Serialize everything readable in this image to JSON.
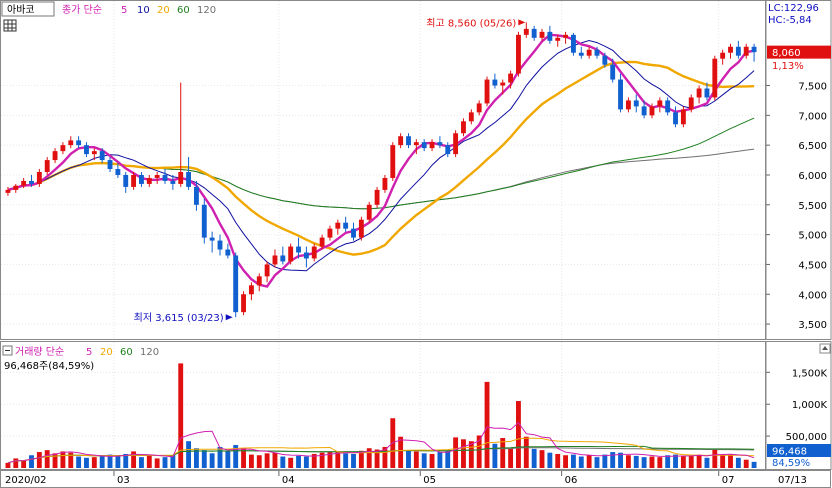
{
  "header": {
    "stock_name": "아바코",
    "price_legend": {
      "label": "종가 단순",
      "periods": [
        "5",
        "10",
        "20",
        "60",
        "120"
      ]
    },
    "volume_legend": {
      "label": "거래량 단순",
      "periods": [
        "5",
        "20",
        "60",
        "120"
      ]
    },
    "volume_readout": "96,468주(84,59%)",
    "lc": "LC:122,96",
    "hc": "HC:-5,84"
  },
  "colors": {
    "ma5": "#d020b0",
    "ma10": "#1010a0",
    "ma20": "#f0a800",
    "ma60": "#208020",
    "ma120": "#707070",
    "up": "#e01010",
    "down": "#1060d0",
    "price_tag": "#e01010",
    "volume_tag": "#1060d0"
  },
  "chart_data": [
    {
      "type": "candlestick",
      "y_ticks": [
        3500,
        4000,
        4500,
        5000,
        5500,
        6000,
        6500,
        7000,
        7500
      ],
      "y_tick_labels": [
        "3,500",
        "4,000",
        "4,500",
        "5,000",
        "5,500",
        "6,000",
        "6,500",
        "7,000",
        "7,500"
      ],
      "ylim": [
        3300,
        8800
      ],
      "x_labels": [
        "2020/02",
        "03",
        "04",
        "05",
        "06",
        "07",
        "07/13"
      ],
      "last_price": "8,060",
      "last_change": "1,13%",
      "high_annotation": "최고 8,560 (05/26)",
      "low_annotation": "최저 3,615 (03/23)",
      "high": 8560,
      "low": 3615,
      "candles": [
        [
          5700,
          5800,
          5650,
          5750
        ],
        [
          5750,
          5850,
          5700,
          5820
        ],
        [
          5820,
          5950,
          5780,
          5900
        ],
        [
          5900,
          6000,
          5800,
          5850
        ],
        [
          5850,
          6100,
          5800,
          6050
        ],
        [
          6050,
          6300,
          6000,
          6250
        ],
        [
          6250,
          6450,
          6200,
          6400
        ],
        [
          6400,
          6550,
          6350,
          6500
        ],
        [
          6500,
          6650,
          6450,
          6580
        ],
        [
          6580,
          6650,
          6450,
          6500
        ],
        [
          6500,
          6550,
          6300,
          6350
        ],
        [
          6350,
          6450,
          6250,
          6400
        ],
        [
          6400,
          6450,
          6200,
          6250
        ],
        [
          6250,
          6300,
          6050,
          6100
        ],
        [
          6100,
          6200,
          5950,
          6000
        ],
        [
          6000,
          6050,
          5700,
          5800
        ],
        [
          5800,
          6050,
          5750,
          6000
        ],
        [
          6000,
          6050,
          5800,
          5850
        ],
        [
          5850,
          6000,
          5800,
          5950
        ],
        [
          5950,
          6050,
          5850,
          6000
        ],
        [
          6000,
          6100,
          5850,
          5900
        ],
        [
          5900,
          6000,
          5750,
          5850
        ],
        [
          5850,
          7550,
          5800,
          6050
        ],
        [
          6050,
          6300,
          5750,
          5800
        ],
        [
          5800,
          5900,
          5400,
          5500
        ],
        [
          5500,
          5600,
          4850,
          4950
        ],
        [
          4950,
          5050,
          4700,
          4900
        ],
        [
          4900,
          5000,
          4650,
          4750
        ],
        [
          4750,
          4850,
          4600,
          4650
        ],
        [
          4650,
          4700,
          3615,
          3700
        ],
        [
          3700,
          4050,
          3650,
          4000
        ],
        [
          4000,
          4200,
          3900,
          4150
        ],
        [
          4150,
          4350,
          4050,
          4300
        ],
        [
          4300,
          4550,
          4200,
          4500
        ],
        [
          4500,
          4750,
          4450,
          4650
        ],
        [
          4650,
          4800,
          4500,
          4550
        ],
        [
          4550,
          4850,
          4500,
          4800
        ],
        [
          4800,
          4950,
          4600,
          4700
        ],
        [
          4700,
          4800,
          4450,
          4600
        ],
        [
          4600,
          4850,
          4550,
          4800
        ],
        [
          4800,
          5000,
          4750,
          4950
        ],
        [
          4950,
          5150,
          4900,
          5100
        ],
        [
          5100,
          5250,
          5000,
          5200
        ],
        [
          5200,
          5300,
          5050,
          5100
        ],
        [
          5100,
          5200,
          4900,
          4950
        ],
        [
          4950,
          5300,
          4900,
          5250
        ],
        [
          5250,
          5550,
          5200,
          5500
        ],
        [
          5500,
          5800,
          5450,
          5750
        ],
        [
          5750,
          6000,
          5700,
          5950
        ],
        [
          5950,
          6550,
          5900,
          6500
        ],
        [
          6500,
          6700,
          6450,
          6650
        ],
        [
          6650,
          6700,
          6450,
          6500
        ],
        [
          6500,
          6600,
          6350,
          6550
        ],
        [
          6550,
          6600,
          6400,
          6450
        ],
        [
          6450,
          6600,
          6400,
          6550
        ],
        [
          6550,
          6650,
          6450,
          6500
        ],
        [
          6500,
          6550,
          6300,
          6350
        ],
        [
          6350,
          6750,
          6300,
          6700
        ],
        [
          6700,
          6950,
          6650,
          6900
        ],
        [
          6900,
          7100,
          6850,
          7050
        ],
        [
          7050,
          7250,
          7000,
          7200
        ],
        [
          7200,
          7650,
          7150,
          7600
        ],
        [
          7600,
          7700,
          7450,
          7500
        ],
        [
          7500,
          7600,
          7350,
          7550
        ],
        [
          7550,
          7750,
          7450,
          7700
        ],
        [
          7700,
          8400,
          7650,
          8350
        ],
        [
          8350,
          8560,
          8300,
          8450
        ],
        [
          8450,
          8500,
          8250,
          8300
        ],
        [
          8300,
          8450,
          8250,
          8400
        ],
        [
          8400,
          8500,
          8200,
          8250
        ],
        [
          8250,
          8350,
          8150,
          8300
        ],
        [
          8300,
          8400,
          8200,
          8350
        ],
        [
          8350,
          8380,
          8000,
          8050
        ],
        [
          8050,
          8150,
          7950,
          8000
        ],
        [
          8000,
          8150,
          7950,
          8100
        ],
        [
          8100,
          8150,
          7950,
          8000
        ],
        [
          8000,
          8050,
          7800,
          7850
        ],
        [
          7850,
          7950,
          7550,
          7600
        ],
        [
          7600,
          7700,
          7050,
          7100
        ],
        [
          7100,
          7300,
          7050,
          7250
        ],
        [
          7250,
          7350,
          7050,
          7150
        ],
        [
          7150,
          7250,
          6950,
          7000
        ],
        [
          7000,
          7200,
          6950,
          7150
        ],
        [
          7150,
          7300,
          7050,
          7250
        ],
        [
          7250,
          7300,
          7000,
          7050
        ],
        [
          7050,
          7150,
          6800,
          6850
        ],
        [
          6850,
          7150,
          6800,
          7100
        ],
        [
          7100,
          7350,
          7050,
          7300
        ],
        [
          7300,
          7500,
          7200,
          7450
        ],
        [
          7450,
          7550,
          7250,
          7300
        ],
        [
          7300,
          8000,
          7250,
          7950
        ],
        [
          7950,
          8100,
          7850,
          8050
        ],
        [
          8050,
          8200,
          7950,
          8150
        ],
        [
          8150,
          8250,
          7950,
          8000
        ],
        [
          8000,
          8200,
          7950,
          8150
        ],
        [
          8150,
          8200,
          7900,
          8060
        ]
      ]
    },
    {
      "type": "bar",
      "name": "거래량",
      "y_ticks": [
        500000,
        1000000,
        1500000
      ],
      "y_tick_labels": [
        "500,000",
        "1,000K",
        "1,500K"
      ],
      "ylim": [
        0,
        1850000
      ],
      "last_volume": "96,468",
      "last_ratio": "84,59%",
      "values": [
        80000,
        150000,
        120000,
        200000,
        250000,
        280000,
        230000,
        260000,
        240000,
        180000,
        160000,
        170000,
        190000,
        210000,
        200000,
        220000,
        260000,
        170000,
        190000,
        150000,
        170000,
        200000,
        1640000,
        420000,
        310000,
        280000,
        230000,
        330000,
        260000,
        360000,
        310000,
        210000,
        200000,
        230000,
        240000,
        180000,
        160000,
        190000,
        180000,
        220000,
        240000,
        250000,
        260000,
        230000,
        220000,
        270000,
        310000,
        290000,
        330000,
        780000,
        490000,
        280000,
        260000,
        230000,
        220000,
        250000,
        270000,
        480000,
        450000,
        420000,
        510000,
        1350000,
        380000,
        470000,
        300000,
        1050000,
        490000,
        300000,
        280000,
        240000,
        220000,
        200000,
        210000,
        180000,
        200000,
        170000,
        210000,
        250000,
        240000,
        200000,
        190000,
        170000,
        180000,
        170000,
        200000,
        210000,
        180000,
        190000,
        210000,
        160000,
        300000,
        200000,
        210000,
        160000,
        130000,
        96468
      ]
    }
  ]
}
